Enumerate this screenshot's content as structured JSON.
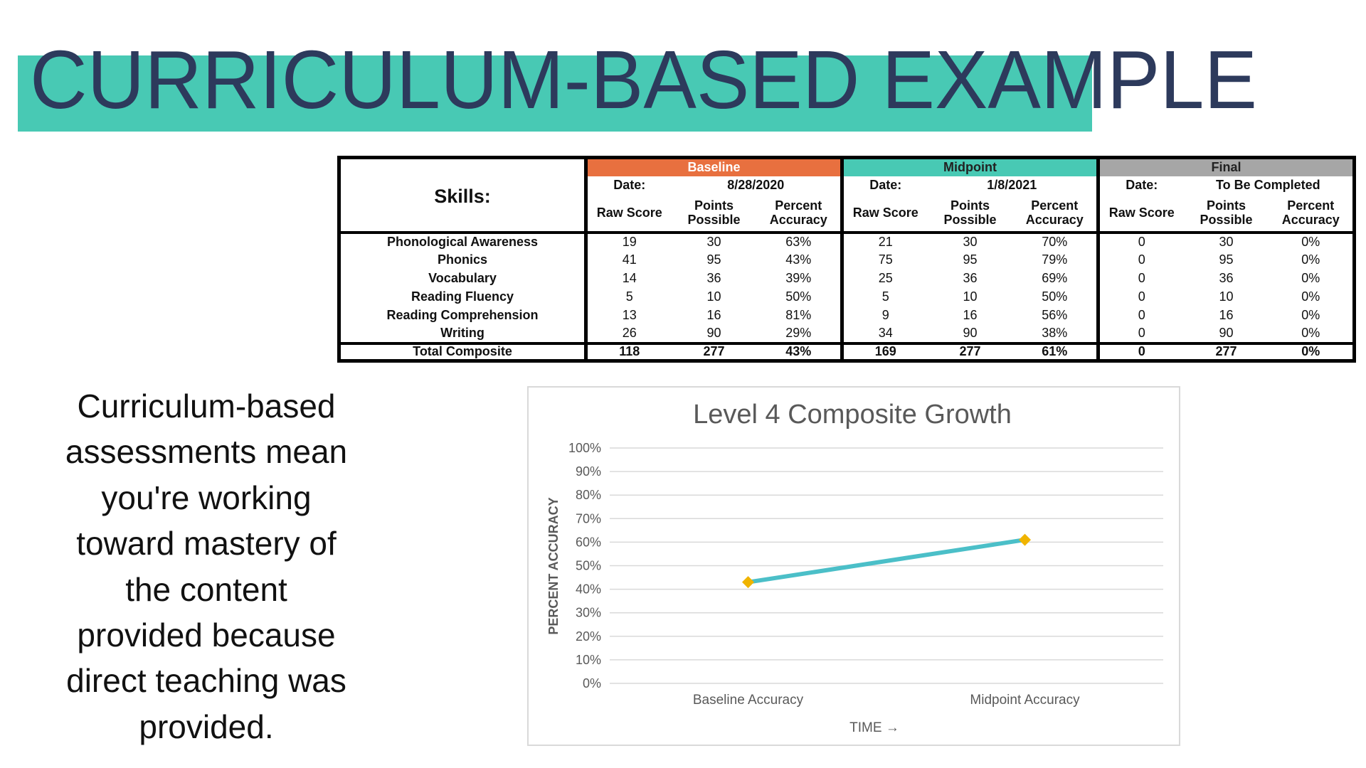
{
  "title": "CURRICULUM-BASED EXAMPLE",
  "table": {
    "skills_header": "Skills:",
    "groups": [
      {
        "name": "Baseline",
        "color": "#e8703f",
        "date_label": "Date:",
        "date": "8/28/2020"
      },
      {
        "name": "Midpoint",
        "color": "#48c9b4",
        "date_label": "Date:",
        "date": "1/8/2021"
      },
      {
        "name": "Final",
        "color": "#a6a6a6",
        "date_label": "Date:",
        "date": "To Be Completed"
      }
    ],
    "columns": [
      "Raw Score",
      "Points Possible",
      "Percent Accuracy"
    ],
    "rows": [
      [
        "Phonological Awareness",
        "19",
        "30",
        "63%",
        "21",
        "30",
        "70%",
        "0",
        "30",
        "0%"
      ],
      [
        "Phonics",
        "41",
        "95",
        "43%",
        "75",
        "95",
        "79%",
        "0",
        "95",
        "0%"
      ],
      [
        "Vocabulary",
        "14",
        "36",
        "39%",
        "25",
        "36",
        "69%",
        "0",
        "36",
        "0%"
      ],
      [
        "Reading Fluency",
        "5",
        "10",
        "50%",
        "5",
        "10",
        "50%",
        "0",
        "10",
        "0%"
      ],
      [
        "Reading Comprehension",
        "13",
        "16",
        "81%",
        "9",
        "16",
        "56%",
        "0",
        "16",
        "0%"
      ],
      [
        "Writing",
        "26",
        "90",
        "29%",
        "34",
        "90",
        "38%",
        "0",
        "90",
        "0%"
      ]
    ],
    "total": [
      "Total Composite",
      "118",
      "277",
      "43%",
      "169",
      "277",
      "61%",
      "0",
      "277",
      "0%"
    ]
  },
  "body_text": [
    "Curriculum-based",
    "assessments mean",
    "you're working",
    "toward mastery of",
    "the content",
    "provided because",
    "direct teaching was",
    "provided."
  ],
  "chart_data": {
    "type": "line",
    "title": "Level 4 Composite Growth",
    "categories": [
      "Baseline Accuracy",
      "Midpoint Accuracy"
    ],
    "values": [
      43,
      61
    ],
    "color": "#4bbfc8",
    "marker_color": "#f0b400",
    "ylim": [
      0,
      100
    ],
    "yticks": [
      {
        "value": 0,
        "label": "0%"
      },
      {
        "value": 10,
        "label": "10%"
      },
      {
        "value": 20,
        "label": "20%"
      },
      {
        "value": 30,
        "label": "30%"
      },
      {
        "value": 40,
        "label": "40%"
      },
      {
        "value": 50,
        "label": "50%"
      },
      {
        "value": 60,
        "label": "60%"
      },
      {
        "value": 70,
        "label": "70%"
      },
      {
        "value": 80,
        "label": "80%"
      },
      {
        "value": 90,
        "label": "90%"
      },
      {
        "value": 100,
        "label": "100%"
      }
    ],
    "grid": true,
    "x_label": "TIME →",
    "y_label": "PERCENT ACCURACY"
  }
}
